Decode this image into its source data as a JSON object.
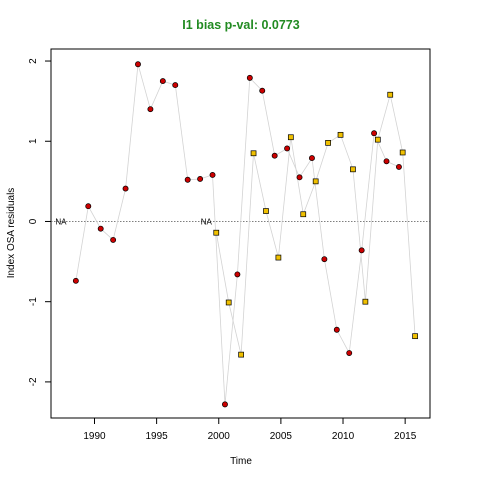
{
  "chart_data": {
    "type": "scatter",
    "title": "I1 bias p-val: 0.0773",
    "title_color": "#228B22",
    "xlabel": "Time",
    "ylabel": "Index OSA residuals",
    "xlim": [
      1986.5,
      2017.0
    ],
    "ylim": [
      -2.45,
      2.15
    ],
    "xticks": [
      1990,
      1995,
      2000,
      2005,
      2010,
      2015
    ],
    "yticks": [
      -2,
      -1,
      0,
      1,
      2
    ],
    "reference_line": {
      "y": 0,
      "style": "dotted",
      "color": "#555555"
    },
    "connector_color": "#d3d3d3",
    "series": [
      {
        "color": "#cc0000",
        "marker": "circle",
        "na_label": "NA",
        "na_x": 1987.3,
        "points": [
          {
            "x": 1988.5,
            "y": -0.74
          },
          {
            "x": 1989.5,
            "y": 0.19
          },
          {
            "x": 1990.5,
            "y": -0.09
          },
          {
            "x": 1991.5,
            "y": -0.23
          },
          {
            "x": 1992.5,
            "y": 0.41
          },
          {
            "x": 1993.5,
            "y": 1.96
          },
          {
            "x": 1994.5,
            "y": 1.4
          },
          {
            "x": 1995.5,
            "y": 1.75
          },
          {
            "x": 1996.5,
            "y": 1.7
          },
          {
            "x": 1997.5,
            "y": 0.52
          },
          {
            "x": 1998.5,
            "y": 0.53
          },
          {
            "x": 1999.5,
            "y": 0.58
          },
          {
            "x": 2000.5,
            "y": -2.28
          },
          {
            "x": 2001.5,
            "y": -0.66
          },
          {
            "x": 2002.5,
            "y": 1.79
          },
          {
            "x": 2003.5,
            "y": 1.63
          },
          {
            "x": 2004.5,
            "y": 0.82
          },
          {
            "x": 2005.5,
            "y": 0.91
          },
          {
            "x": 2006.5,
            "y": 0.55
          },
          {
            "x": 2007.5,
            "y": 0.79
          },
          {
            "x": 2008.5,
            "y": -0.47
          },
          {
            "x": 2009.5,
            "y": -1.35
          },
          {
            "x": 2010.5,
            "y": -1.64
          },
          {
            "x": 2011.5,
            "y": -0.36
          },
          {
            "x": 2012.5,
            "y": 1.1
          },
          {
            "x": 2013.5,
            "y": 0.75
          },
          {
            "x": 2014.5,
            "y": 0.68
          }
        ]
      },
      {
        "color": "#f0c000",
        "marker": "square",
        "na_label": "NA",
        "na_x": 1999.0,
        "points": [
          {
            "x": 1999.8,
            "y": -0.14
          },
          {
            "x": 2000.8,
            "y": -1.01
          },
          {
            "x": 2001.8,
            "y": -1.66
          },
          {
            "x": 2002.8,
            "y": 0.85
          },
          {
            "x": 2003.8,
            "y": 0.13
          },
          {
            "x": 2004.8,
            "y": -0.45
          },
          {
            "x": 2005.8,
            "y": 1.05
          },
          {
            "x": 2006.8,
            "y": 0.09
          },
          {
            "x": 2007.8,
            "y": 0.5
          },
          {
            "x": 2008.8,
            "y": 0.98
          },
          {
            "x": 2009.8,
            "y": 1.08
          },
          {
            "x": 2010.8,
            "y": 0.65
          },
          {
            "x": 2011.8,
            "y": -1.0
          },
          {
            "x": 2012.8,
            "y": 1.02
          },
          {
            "x": 2013.8,
            "y": 1.58
          },
          {
            "x": 2014.8,
            "y": 0.86
          },
          {
            "x": 2015.8,
            "y": -1.43
          }
        ]
      }
    ]
  }
}
